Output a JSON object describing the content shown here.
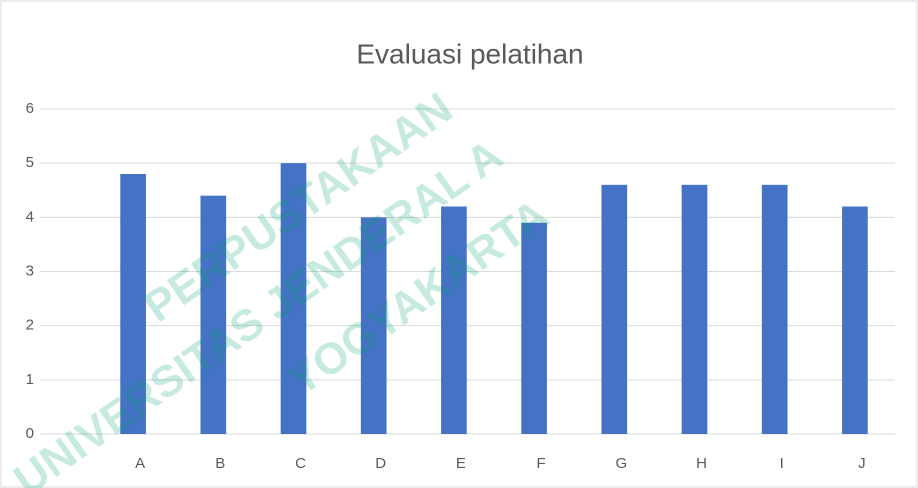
{
  "chart_data": {
    "type": "bar",
    "title": "Evaluasi pelatihan",
    "categories": [
      "A",
      "B",
      "C",
      "D",
      "E",
      "F",
      "G",
      "H",
      "I",
      "J"
    ],
    "values": [
      4.8,
      4.4,
      5.0,
      4.0,
      4.2,
      3.9,
      4.6,
      4.6,
      4.6,
      4.2
    ],
    "color": "#4472c4",
    "ylim": [
      0,
      6
    ],
    "yticks": [
      0,
      1,
      2,
      3,
      4,
      5,
      6
    ],
    "grid": true,
    "watermark": [
      "PERPUSTAKAAN",
      "UNIVERSITAS JENDERAL A",
      "YOGYAKARTA"
    ]
  }
}
